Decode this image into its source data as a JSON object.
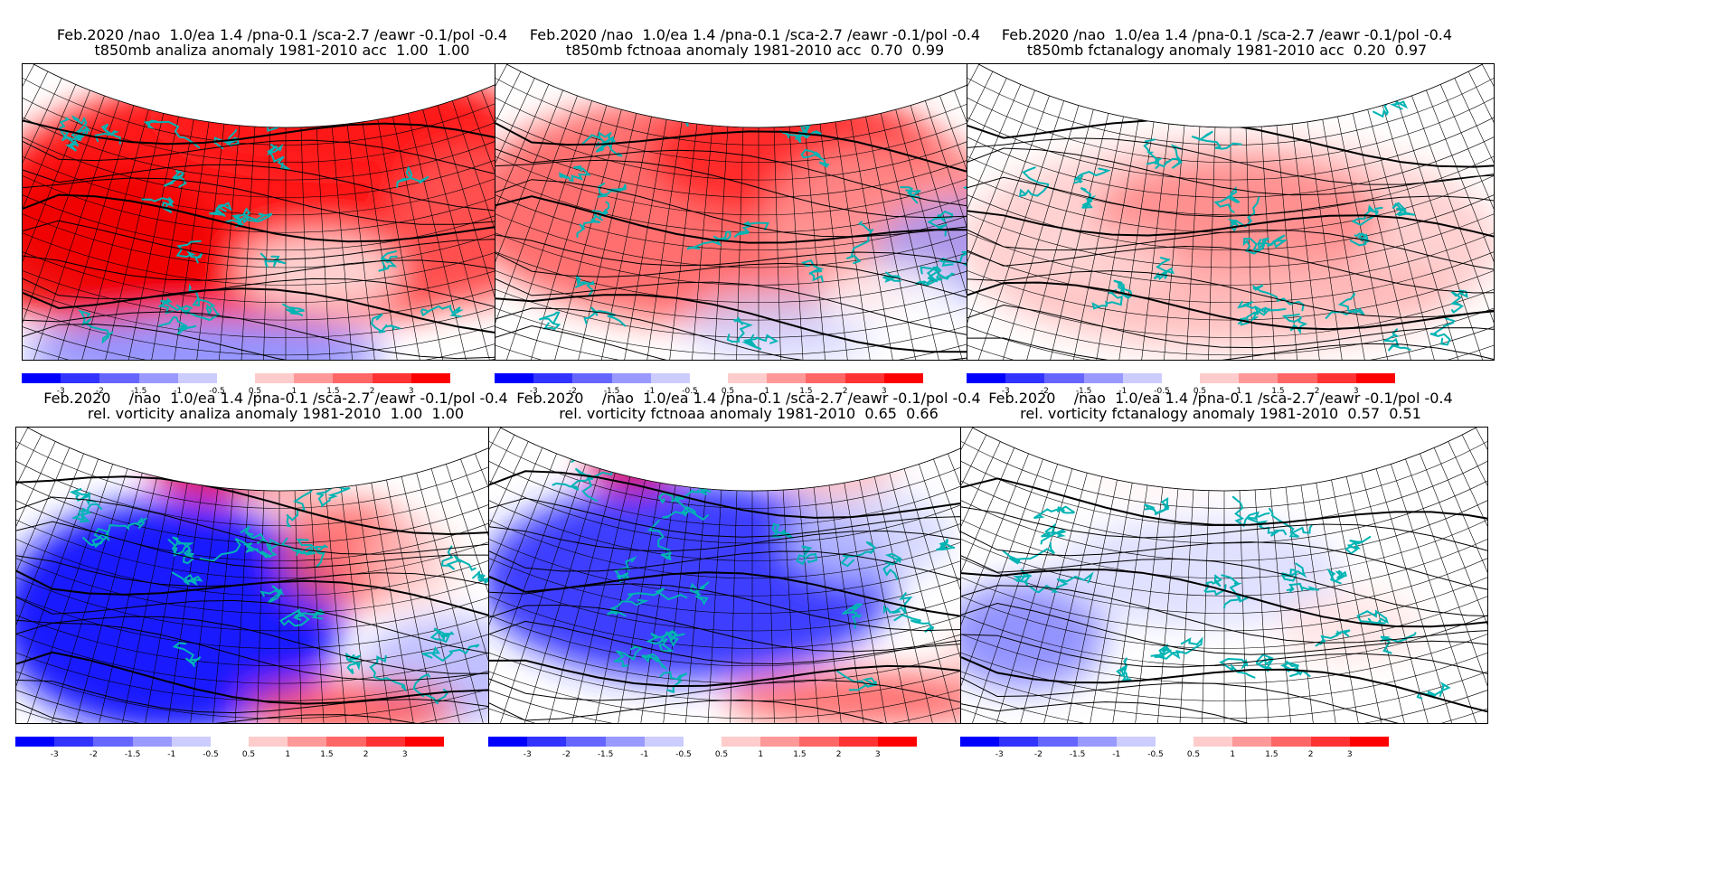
{
  "panels": [
    {
      "title1": "Feb.2020 /nao  1.0/ea 1.4 /pna-0.1 /sca-2.7 /eawr -0.1/pol -0.4",
      "title2": "t850mb analiza anomaly 1981-2010 acc  1.00  1.00",
      "field": "t850mb",
      "product": "analiza",
      "anomaly_dominant": "warm"
    },
    {
      "title1": "Feb.2020 /nao  1.0/ea 1.4 /pna-0.1 /sca-2.7 /eawr -0.1/pol -0.4",
      "title2": "t850mb fctnoaa anomaly 1981-2010 acc  0.70  0.99",
      "field": "t850mb",
      "product": "fctnoaa",
      "anomaly_dominant": "warm"
    },
    {
      "title1": "Feb.2020 /nao  1.0/ea 1.4 /pna-0.1 /sca-2.7 /eawr -0.1/pol -0.4",
      "title2": "t850mb fctanalogy anomaly 1981-2010 acc  0.20  0.97",
      "field": "t850mb",
      "product": "fctanalogy",
      "anomaly_dominant": "warm-weak"
    },
    {
      "title1": "Feb.2020    /nao  1.0/ea 1.4 /pna-0.1 /sca-2.7 /eawr -0.1/pol -0.4",
      "title2": "rel. vorticity analiza anomaly 1981-2010  1.00  1.00",
      "field": "rel. vorticity",
      "product": "analiza",
      "anomaly_dominant": "cold"
    },
    {
      "title1": "Feb.2020    /nao  1.0/ea 1.4 /pna-0.1 /sca-2.7 /eawr -0.1/pol -0.4",
      "title2": "rel. vorticity fctnoaa anomaly 1981-2010  0.65  0.66",
      "field": "rel. vorticity",
      "product": "fctnoaa",
      "anomaly_dominant": "cold"
    },
    {
      "title1": "Feb.2020    /nao  1.0/ea 1.4 /pna-0.1 /sca-2.7 /eawr -0.1/pol -0.4",
      "title2": "rel. vorticity fctanalogy anomaly 1981-2010  0.57  0.51",
      "field": "rel. vorticity",
      "product": "fctanalogy",
      "anomaly_dominant": "weak"
    }
  ],
  "colorbar": {
    "levels": [
      "-3",
      "-2",
      "-1.5",
      "-1",
      "-0.5",
      "0.5",
      "1",
      "1.5",
      "2",
      "3"
    ],
    "colors_negative": [
      "#0000ff",
      "#3333ff",
      "#6666ff",
      "#9999ff",
      "#ccccff"
    ],
    "colors_positive": [
      "#ffcccc",
      "#ff9999",
      "#ff6666",
      "#ff3333",
      "#ff0000"
    ]
  },
  "colors": {
    "coastline": "#00b4b4",
    "contour": "#000000",
    "grid": "#000000"
  }
}
